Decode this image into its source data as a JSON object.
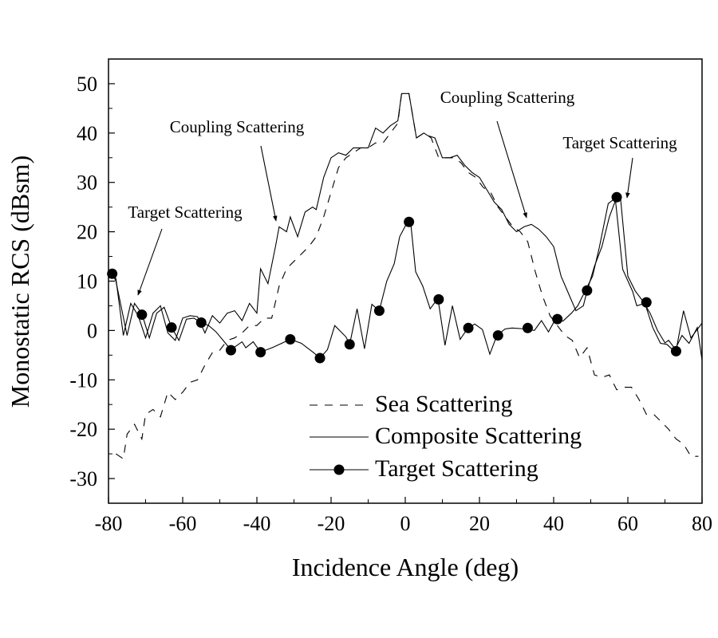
{
  "chart_data": {
    "type": "line",
    "title": "",
    "xlabel": "Incidence Angle (deg)",
    "ylabel": "Monostatic RCS (dBsm)",
    "xlim": [
      -80,
      80
    ],
    "ylim": [
      -35,
      55
    ],
    "xticks": [
      -80,
      -60,
      -40,
      -20,
      0,
      20,
      40,
      60,
      80
    ],
    "xtick_labels": [
      "-80",
      "-60",
      "-40",
      "-20",
      "0",
      "20",
      "40",
      "60",
      "80"
    ],
    "yticks": [
      -30,
      -20,
      -10,
      0,
      10,
      20,
      30,
      40,
      50
    ],
    "ytick_labels": [
      "-30",
      "-20",
      "-10",
      "0",
      "10",
      "20",
      "30",
      "40",
      "50"
    ],
    "grid": false,
    "legend_position": "bottom-center",
    "series": [
      {
        "name": "Sea Scattering",
        "style": "dashed",
        "points": [
          [
            -78,
            -25
          ],
          [
            -76,
            -26
          ],
          [
            -75,
            -21
          ],
          [
            -73,
            -19
          ],
          [
            -71,
            -22
          ],
          [
            -70,
            -17
          ],
          [
            -68,
            -16
          ],
          [
            -66,
            -17.5
          ],
          [
            -64,
            -12.5
          ],
          [
            -62,
            -14
          ],
          [
            -60,
            -12.5
          ],
          [
            -58,
            -10.5
          ],
          [
            -56,
            -10
          ],
          [
            -54,
            -7
          ],
          [
            -52,
            -4.5
          ],
          [
            -50,
            -4
          ],
          [
            -48,
            -2
          ],
          [
            -46,
            -1.5
          ],
          [
            -44,
            -0.5
          ],
          [
            -42,
            1
          ],
          [
            -40,
            1
          ],
          [
            -38,
            2.5
          ],
          [
            -36,
            2.5
          ],
          [
            -34,
            9
          ],
          [
            -32,
            12.5
          ],
          [
            -30,
            14
          ],
          [
            -28,
            15.5
          ],
          [
            -26,
            17
          ],
          [
            -24,
            19
          ],
          [
            -22,
            23
          ],
          [
            -20,
            28
          ],
          [
            -18,
            33
          ],
          [
            -16,
            35
          ],
          [
            -14,
            36
          ],
          [
            -12,
            37
          ],
          [
            -10,
            37
          ],
          [
            -8,
            38
          ],
          [
            -6,
            38
          ],
          [
            -4,
            40
          ],
          [
            -2,
            42
          ],
          [
            -1,
            48
          ],
          [
            1,
            48
          ],
          [
            3,
            39
          ],
          [
            5,
            40
          ],
          [
            7,
            39
          ],
          [
            9,
            35
          ],
          [
            11,
            35
          ],
          [
            13,
            35
          ],
          [
            15,
            34
          ],
          [
            17,
            32
          ],
          [
            19,
            31
          ],
          [
            21,
            29
          ],
          [
            23,
            28
          ],
          [
            25,
            25
          ],
          [
            27,
            23
          ],
          [
            29,
            21
          ],
          [
            31,
            20
          ],
          [
            33,
            18
          ],
          [
            35,
            12
          ],
          [
            37,
            7
          ],
          [
            39,
            3
          ],
          [
            41,
            1
          ],
          [
            43,
            -1
          ],
          [
            45,
            -2
          ],
          [
            47,
            -5.5
          ],
          [
            49,
            -3.5
          ],
          [
            51,
            -9
          ],
          [
            53,
            -9.5
          ],
          [
            55,
            -9
          ],
          [
            57,
            -12
          ],
          [
            59,
            -11.5
          ],
          [
            61,
            -11.5
          ],
          [
            63,
            -14
          ],
          [
            65,
            -17
          ],
          [
            67,
            -17
          ],
          [
            69,
            -18.5
          ],
          [
            71,
            -20
          ],
          [
            73,
            -22
          ],
          [
            75,
            -23
          ],
          [
            77,
            -25.5
          ],
          [
            79,
            -25.5
          ]
        ]
      },
      {
        "name": "Composite Scattering",
        "style": "solid",
        "points": [
          [
            -80,
            11.5
          ],
          [
            -79,
            11.5
          ],
          [
            -78,
            10.5
          ],
          [
            -76,
            -1
          ],
          [
            -74,
            5.5
          ],
          [
            -72,
            3
          ],
          [
            -70,
            -1.5
          ],
          [
            -68,
            3.5
          ],
          [
            -66,
            5
          ],
          [
            -64,
            -0.5
          ],
          [
            -62,
            -2
          ],
          [
            -60,
            2.5
          ],
          [
            -58,
            3
          ],
          [
            -56,
            2.8
          ],
          [
            -54,
            -0.5
          ],
          [
            -52,
            3
          ],
          [
            -50,
            1.5
          ],
          [
            -48,
            3.5
          ],
          [
            -46,
            4
          ],
          [
            -44,
            2
          ],
          [
            -42,
            5.5
          ],
          [
            -40,
            3.5
          ],
          [
            -39,
            12.5
          ],
          [
            -37,
            9.5
          ],
          [
            -35,
            17
          ],
          [
            -34,
            21
          ],
          [
            -32,
            20
          ],
          [
            -31,
            23
          ],
          [
            -29,
            19
          ],
          [
            -27,
            24
          ],
          [
            -25,
            25
          ],
          [
            -24,
            24.5
          ],
          [
            -22,
            31
          ],
          [
            -20,
            35
          ],
          [
            -18,
            36
          ],
          [
            -16,
            35.5
          ],
          [
            -14,
            37
          ],
          [
            -12,
            37
          ],
          [
            -10,
            37
          ],
          [
            -8,
            41
          ],
          [
            -6,
            40
          ],
          [
            -4,
            41.5
          ],
          [
            -2,
            42.5
          ],
          [
            -1,
            48
          ],
          [
            1,
            48
          ],
          [
            3,
            39
          ],
          [
            5,
            40
          ],
          [
            6,
            39.5
          ],
          [
            8,
            39
          ],
          [
            10,
            35
          ],
          [
            12,
            35
          ],
          [
            14,
            35.5
          ],
          [
            16,
            33.5
          ],
          [
            18,
            32
          ],
          [
            20,
            31
          ],
          [
            22,
            28.5
          ],
          [
            24,
            26
          ],
          [
            26,
            24.5
          ],
          [
            28,
            21.5
          ],
          [
            30,
            20
          ],
          [
            32,
            21
          ],
          [
            34,
            21.5
          ],
          [
            36,
            20.5
          ],
          [
            38,
            19
          ],
          [
            40,
            17
          ],
          [
            42,
            11
          ],
          [
            44,
            7.5
          ],
          [
            46,
            4
          ],
          [
            48,
            5
          ],
          [
            49,
            8
          ],
          [
            51,
            13
          ],
          [
            53,
            17
          ],
          [
            55,
            23
          ],
          [
            57,
            27
          ],
          [
            58,
            27
          ],
          [
            60,
            11
          ],
          [
            62,
            8
          ],
          [
            64,
            6
          ],
          [
            66,
            3.5
          ],
          [
            68,
            0
          ],
          [
            70,
            -2.5
          ],
          [
            71,
            -2
          ],
          [
            73,
            -4
          ],
          [
            75,
            4
          ],
          [
            77,
            -1.5
          ],
          [
            79,
            0.5
          ],
          [
            80,
            1.5
          ]
        ]
      },
      {
        "name": "Target Scattering",
        "style": "solid-with-circles",
        "points": [
          [
            -80,
            11.5
          ],
          [
            -79,
            11.5
          ],
          [
            -78,
            10
          ],
          [
            -75,
            -1
          ],
          [
            -73,
            5.5
          ],
          [
            -71,
            3.4
          ],
          [
            -69,
            -1.5
          ],
          [
            -67,
            3.5
          ],
          [
            -65,
            4.7
          ],
          [
            -63,
            0.6
          ],
          [
            -61,
            -2
          ],
          [
            -59,
            2.3
          ],
          [
            -57,
            2.5
          ],
          [
            -55,
            1.6
          ],
          [
            -53,
            1
          ],
          [
            -51,
            -0.3
          ],
          [
            -48,
            -3
          ],
          [
            -47,
            -3.9
          ],
          [
            -44,
            -2.3
          ],
          [
            -43,
            -3.5
          ],
          [
            -41,
            -2.3
          ],
          [
            -39,
            -4.4
          ],
          [
            -35.6,
            -3.4
          ],
          [
            -31,
            -1.8
          ],
          [
            -28,
            -2.6
          ],
          [
            -24.7,
            -4.5
          ],
          [
            -23,
            -5.6
          ],
          [
            -21,
            -3.9
          ],
          [
            -19,
            1
          ],
          [
            -16,
            -1.3
          ],
          [
            -15,
            -2.8
          ],
          [
            -13,
            4.4
          ],
          [
            -11,
            -3.7
          ],
          [
            -9,
            5.3
          ],
          [
            -7,
            4
          ],
          [
            -5,
            10
          ],
          [
            -3,
            13.5
          ],
          [
            -1.5,
            19
          ],
          [
            0.6,
            22
          ],
          [
            1.5,
            21.5
          ],
          [
            2.8,
            11.9
          ],
          [
            4.7,
            9
          ],
          [
            6.7,
            4.4
          ],
          [
            8.8,
            6.5
          ],
          [
            10.7,
            -3
          ],
          [
            12.7,
            5
          ],
          [
            14.8,
            -1.8
          ],
          [
            16.7,
            0.3
          ],
          [
            18.7,
            1.3
          ],
          [
            20.8,
            0.2
          ],
          [
            22.8,
            -4.8
          ],
          [
            24.7,
            -1
          ],
          [
            26.9,
            0.3
          ],
          [
            28.8,
            0.5
          ],
          [
            32.6,
            0.3
          ],
          [
            34.8,
            0
          ],
          [
            36.7,
            2
          ],
          [
            38.6,
            -0.3
          ],
          [
            40.5,
            2.3
          ],
          [
            42.5,
            1.9
          ],
          [
            44.8,
            3.5
          ],
          [
            46.5,
            5
          ],
          [
            48.5,
            8
          ],
          [
            50.5,
            11
          ],
          [
            52.3,
            16.8
          ],
          [
            54.7,
            25.7
          ],
          [
            56.6,
            26.8
          ],
          [
            58.6,
            12.4
          ],
          [
            61.3,
            7.9
          ],
          [
            62.4,
            5
          ],
          [
            64.6,
            5.5
          ],
          [
            66.7,
            0.6
          ],
          [
            68.8,
            -2.6
          ],
          [
            70.5,
            -2.8
          ],
          [
            72.5,
            -4.2
          ],
          [
            74.6,
            -1
          ],
          [
            76.5,
            -2.6
          ],
          [
            78.7,
            0.6
          ],
          [
            80,
            -6
          ]
        ],
        "markers": [
          [
            -79,
            11.5
          ],
          [
            -71,
            3.2
          ],
          [
            -63,
            0.6
          ],
          [
            -55,
            1.6
          ],
          [
            -47,
            -4
          ],
          [
            -39,
            -4.4
          ],
          [
            -31,
            -1.8
          ],
          [
            -23,
            -5.6
          ],
          [
            -15,
            -2.8
          ],
          [
            -7,
            4
          ],
          [
            1,
            22
          ],
          [
            9,
            6.3
          ],
          [
            17,
            0.5
          ],
          [
            25,
            -1
          ],
          [
            33,
            0.5
          ],
          [
            41,
            2.3
          ],
          [
            49,
            8.1
          ],
          [
            57,
            27
          ],
          [
            65,
            5.7
          ],
          [
            73,
            -4.2
          ]
        ]
      }
    ],
    "annotations": [
      {
        "text": "Target Scattering",
        "text_at": [
          -72,
          22
        ],
        "arrow_to": [
          -72,
          7
        ]
      },
      {
        "text": "Coupling Scattering",
        "text_at": [
          -45,
          40
        ],
        "arrow_to": [
          -35,
          22
        ]
      },
      {
        "text": "Coupling Scattering",
        "text_at": [
          25,
          46
        ],
        "arrow_to": [
          33,
          23
        ]
      },
      {
        "text": "Target Scattering",
        "text_at": [
          62,
          37
        ],
        "arrow_to": [
          60,
          27
        ]
      }
    ]
  }
}
